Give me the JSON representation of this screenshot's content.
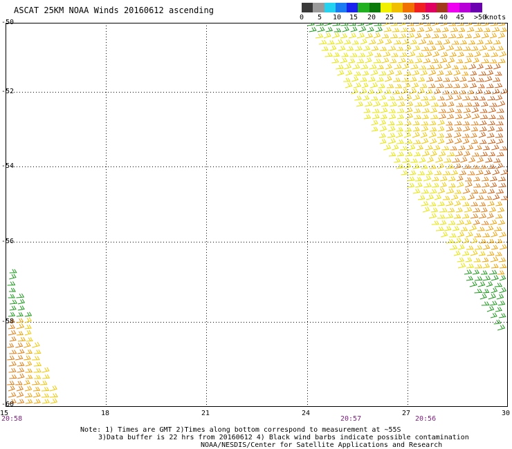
{
  "title": "ASCAT 25KM NOAA Winds 20160612 ascending",
  "colorbar": {
    "segments": [
      "#3a3a3a",
      "#9a9a9a",
      "#22d2ee",
      "#1a7cf0",
      "#1a22ee",
      "#20b020",
      "#0a7a0a",
      "#f0f000",
      "#f0c000",
      "#f07000",
      "#f02020",
      "#e00060",
      "#a03a1a",
      "#f000f0",
      "#b800d8",
      "#6a00b0"
    ],
    "labels": [
      "0",
      "5",
      "10",
      "15",
      "20",
      "25",
      "30",
      "35",
      "40",
      "45",
      ">50"
    ],
    "units": "knots"
  },
  "axes": {
    "lat_labels": [
      "-50",
      "-52",
      "-54",
      "-56",
      "-58",
      "-60"
    ],
    "lat_values": [
      -50,
      -52,
      -54,
      -56,
      -58,
      -60
    ],
    "lon_labels": [
      "15",
      "18",
      "21",
      "24",
      "27",
      "30"
    ],
    "lon_values": [
      15,
      18,
      21,
      24,
      27,
      30
    ],
    "lon_range": [
      15,
      30
    ],
    "lat_range": [
      -50,
      -60
    ],
    "grid": true
  },
  "time_labels": [
    {
      "text": "20:58",
      "lon": 15
    },
    {
      "text": "20:57",
      "lon": 26
    },
    {
      "text": "20:56",
      "lon": 28.2
    }
  ],
  "notes": [
    "Note: 1) Times are GMT 2)Times along bottom correspond to measurement at ~55S",
    "3)Data buffer is 22 hrs from 20160612 4) Black wind barbs indicate possible contamination",
    "NOAA/NESDIS/Center for Satellite Applications and Research"
  ]
}
